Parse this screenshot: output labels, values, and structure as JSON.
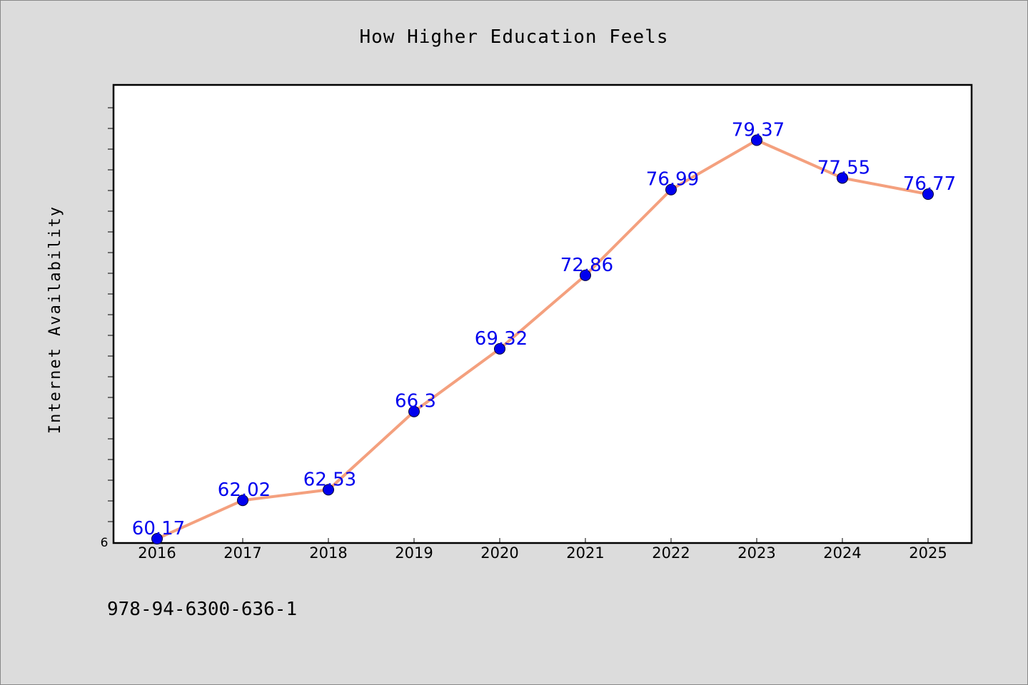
{
  "footer_text": "978-94-6300-636-1",
  "chart_data": {
    "type": "line",
    "title": "How Higher Education Feels",
    "xlabel": "",
    "ylabel": "Internet Availability",
    "categories": [
      "2016",
      "2017",
      "2018",
      "2019",
      "2020",
      "2021",
      "2022",
      "2023",
      "2024",
      "2025"
    ],
    "series": [
      {
        "values": [
          60.17,
          62.02,
          62.53,
          66.3,
          69.32,
          72.86,
          76.99,
          79.37,
          77.55,
          76.77
        ],
        "labels": [
          "60.17",
          "62.02",
          "62.53",
          "66.3",
          "69.32",
          "72.86",
          "76.99",
          "79.37",
          "77.55",
          "76.77"
        ],
        "line_color": "#f4a07e",
        "marker_color": "#0000ee"
      }
    ],
    "ylim": [
      60,
      82
    ],
    "y_tick_label": "6",
    "grid": false,
    "legend": "none",
    "background": "#dcdcdc",
    "plot_background": "#ffffff"
  }
}
